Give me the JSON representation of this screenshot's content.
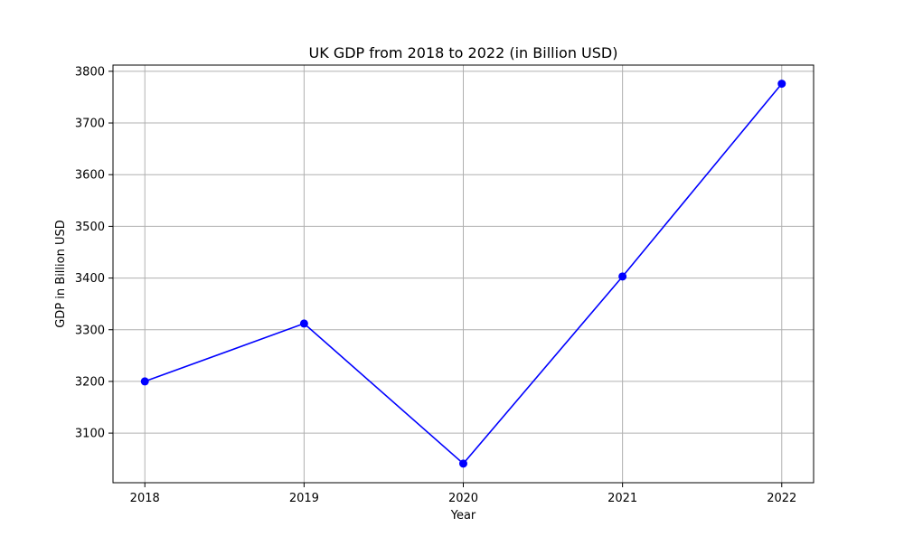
{
  "chart_data": {
    "type": "line",
    "title": "UK GDP from 2018 to 2022 (in Billion USD)",
    "xlabel": "Year",
    "ylabel": "GDP in Billion USD",
    "x": [
      "2018",
      "2019",
      "2020",
      "2021",
      "2022"
    ],
    "series": [
      {
        "values": [
          3200,
          3312,
          3041,
          3403,
          3776
        ],
        "color": "#0000ff",
        "marker": "circle"
      }
    ],
    "xlim": [
      -0.2,
      4.2
    ],
    "ylim": [
      3004,
      3812
    ],
    "yticks": [
      3100,
      3200,
      3300,
      3400,
      3500,
      3600,
      3700,
      3800
    ],
    "grid": true,
    "grid_color": "#b0b0b0",
    "legend": "none"
  }
}
